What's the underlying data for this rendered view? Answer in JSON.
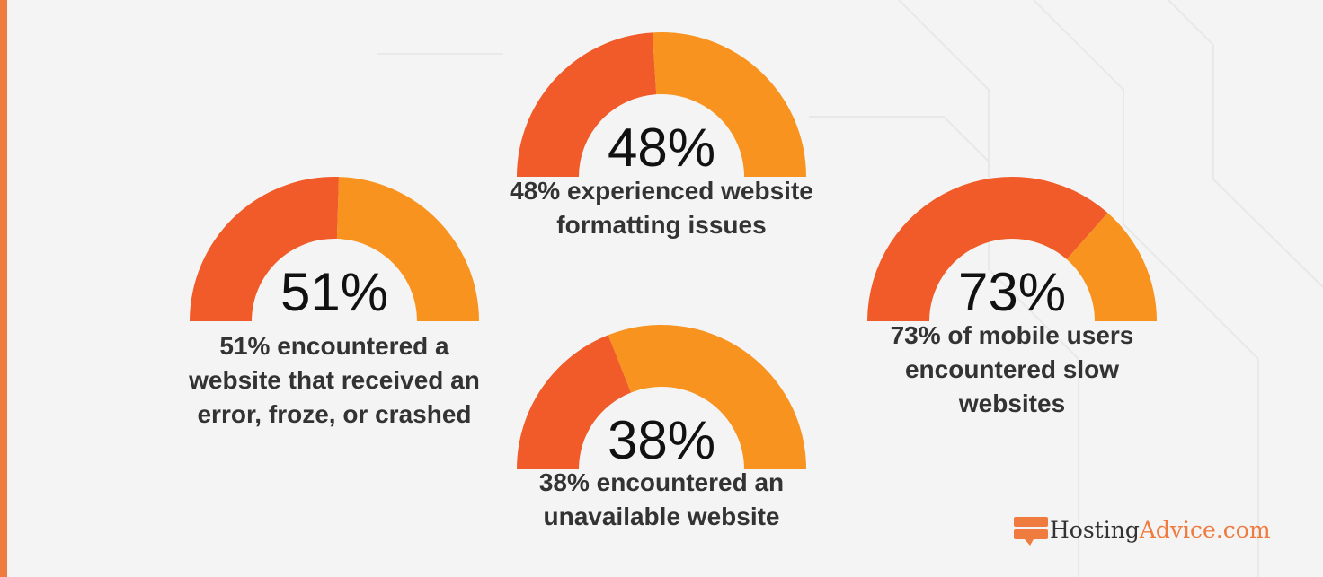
{
  "chart_data": {
    "type": "gauge",
    "colors": {
      "value": "#f15a29",
      "remainder": "#f7931e"
    },
    "range": [
      0,
      100
    ],
    "gauges": [
      {
        "value": 51,
        "center_label": "51%",
        "caption": "51% encountered a website that received an error, froze, or crashed"
      },
      {
        "value": 48,
        "center_label": "48%",
        "caption": "48% experienced website formatting issues"
      },
      {
        "value": 38,
        "center_label": "38%",
        "caption": "38% encountered an unavailable website"
      },
      {
        "value": 73,
        "center_label": "73%",
        "caption": "73% of mobile users encountered slow websites"
      }
    ]
  },
  "logo": {
    "part1": "Hosting",
    "part2": "Advice.com"
  }
}
